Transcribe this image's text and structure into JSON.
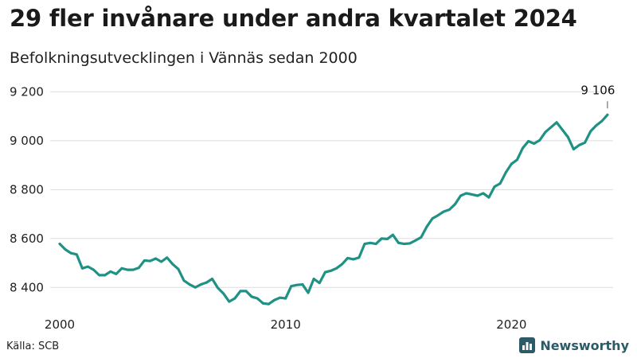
{
  "header": {
    "title": "29 fler invånare under andra kvartalet 2024",
    "subtitle": "Befolkningsutvecklingen i Vännäs sedan 2000"
  },
  "footer": {
    "source": "Källa: SCB",
    "brand": "Newsworthy"
  },
  "colors": {
    "line": "#1f9185",
    "grid": "#dddddd",
    "text": "#222222",
    "brand": "#2c5b68"
  },
  "icons": {
    "brand": "bar-chart-icon"
  },
  "chart_data": {
    "type": "line",
    "title": "29 fler invånare under andra kvartalet 2024",
    "subtitle": "Befolkningsutvecklingen i Vännäs sedan 2000",
    "xlabel": "",
    "ylabel": "",
    "xlim": [
      2000,
      2024.5
    ],
    "ylim": [
      8300,
      9250
    ],
    "grid": true,
    "x_ticks": [
      {
        "value": 2000,
        "label": "2000"
      },
      {
        "value": 2010,
        "label": "2010"
      },
      {
        "value": 2020,
        "label": "2020"
      }
    ],
    "y_ticks": [
      {
        "value": 8400,
        "label": "8 400"
      },
      {
        "value": 8600,
        "label": "8 600"
      },
      {
        "value": 8800,
        "label": "8 800"
      },
      {
        "value": 9000,
        "label": "9 000"
      },
      {
        "value": 9200,
        "label": "9 200"
      }
    ],
    "annotation": {
      "x": 2024.25,
      "y": 9106,
      "label": "9 106"
    },
    "series": [
      {
        "x": [
          2000.0,
          2000.25,
          2000.5,
          2000.75,
          2001.0,
          2001.25,
          2001.5,
          2001.75,
          2002.0,
          2002.25,
          2002.5,
          2002.75,
          2003.0,
          2003.25,
          2003.5,
          2003.75,
          2004.0,
          2004.25,
          2004.5,
          2004.75,
          2005.0,
          2005.25,
          2005.5,
          2005.75,
          2006.0,
          2006.25,
          2006.5,
          2006.75,
          2007.0,
          2007.25,
          2007.5,
          2007.75,
          2008.0,
          2008.25,
          2008.5,
          2008.75,
          2009.0,
          2009.25,
          2009.5,
          2009.75,
          2010.0,
          2010.25,
          2010.5,
          2010.75,
          2011.0,
          2011.25,
          2011.5,
          2011.75,
          2012.0,
          2012.25,
          2012.5,
          2012.75,
          2013.0,
          2013.25,
          2013.5,
          2013.75,
          2014.0,
          2014.25,
          2014.5,
          2014.75,
          2015.0,
          2015.25,
          2015.5,
          2015.75,
          2016.0,
          2016.25,
          2016.5,
          2016.75,
          2017.0,
          2017.25,
          2017.5,
          2017.75,
          2018.0,
          2018.25,
          2018.5,
          2018.75,
          2019.0,
          2019.25,
          2019.5,
          2019.75,
          2020.0,
          2020.25,
          2020.5,
          2020.75,
          2021.0,
          2021.25,
          2021.5,
          2021.75,
          2022.0,
          2022.25,
          2022.5,
          2022.75,
          2023.0,
          2023.25,
          2023.5,
          2023.75,
          2024.0,
          2024.25
        ],
        "values": [
          8578,
          8555,
          8540,
          8535,
          8478,
          8485,
          8472,
          8450,
          8450,
          8465,
          8455,
          8478,
          8472,
          8472,
          8480,
          8510,
          8508,
          8518,
          8505,
          8522,
          8495,
          8475,
          8428,
          8412,
          8400,
          8412,
          8420,
          8435,
          8398,
          8375,
          8342,
          8355,
          8385,
          8385,
          8362,
          8355,
          8335,
          8332,
          8348,
          8358,
          8355,
          8405,
          8410,
          8412,
          8378,
          8435,
          8418,
          8462,
          8468,
          8478,
          8495,
          8520,
          8515,
          8522,
          8578,
          8582,
          8578,
          8600,
          8598,
          8615,
          8582,
          8578,
          8580,
          8592,
          8605,
          8648,
          8682,
          8695,
          8710,
          8718,
          8740,
          8775,
          8785,
          8780,
          8775,
          8785,
          8768,
          8812,
          8825,
          8870,
          8905,
          8922,
          8970,
          8998,
          8988,
          9002,
          9035,
          9055,
          9075,
          9045,
          9015,
          8965,
          8982,
          8992,
          9038,
          9062,
          9080,
          9106
        ]
      }
    ]
  }
}
